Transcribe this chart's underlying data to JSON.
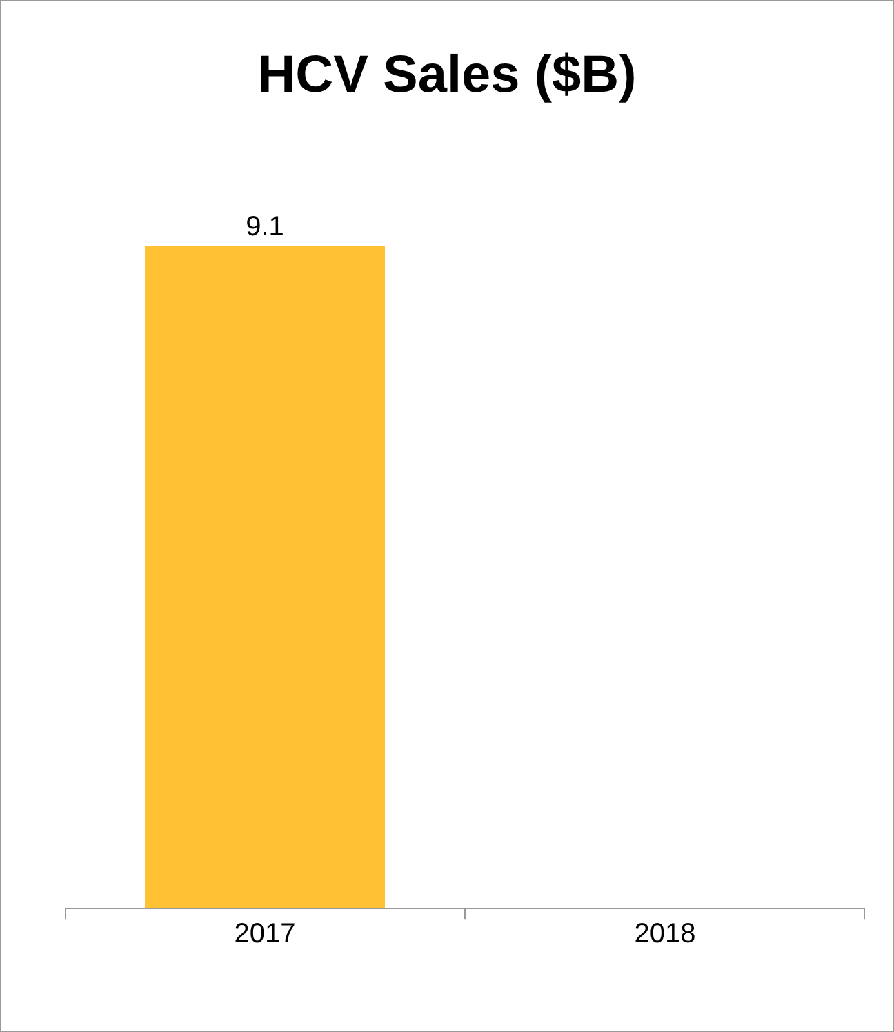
{
  "chart_data": {
    "type": "bar",
    "title": "HCV Sales ($B)",
    "categories": [
      "2017",
      "2018"
    ],
    "values": [
      9.1,
      null
    ],
    "data_labels": true,
    "color": "#ffc235"
  }
}
